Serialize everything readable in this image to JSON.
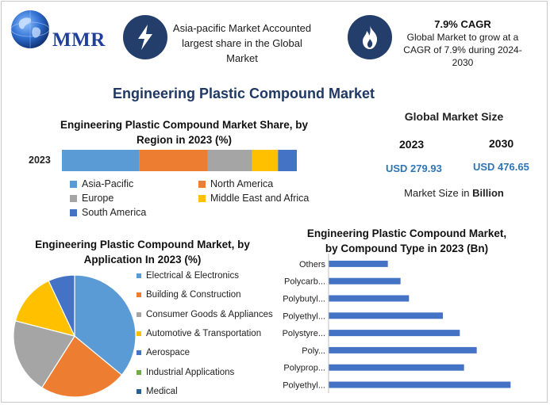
{
  "brand": {
    "logo_text": "MMR"
  },
  "highlights": [
    {
      "icon": "lightning-bolt-icon",
      "text": "Asia-pacific Market Accounted largest share in the Global Market"
    },
    {
      "icon": "flame-icon",
      "title": "7.9% CAGR",
      "text": "Global Market to grow at a CAGR of 7.9% during 2024-2030"
    }
  ],
  "main_title": "Engineering Plastic Compound Market",
  "global_size": {
    "title": "Global Market Size",
    "years": [
      "2023",
      "2030"
    ],
    "values": [
      "USD 279.93",
      "USD 476.65"
    ],
    "note_prefix": "Market Size in ",
    "note_bold": "Billion"
  },
  "colors": {
    "navy": "#233e6a",
    "asia_pacific": "#5b9bd5",
    "north_america": "#ed7d31",
    "europe": "#a5a5a5",
    "mea": "#ffc000",
    "south_america": "#4472c4",
    "industrial": "#70ad47",
    "medical": "#255e91",
    "bar": "#4472c4"
  },
  "chart_data": [
    {
      "type": "bar",
      "orientation": "horizontal-stacked",
      "title": "Engineering Plastic Compound Market Share, by Region in 2023 (%)",
      "categories": [
        "2023"
      ],
      "series": [
        {
          "name": "Asia-Pacific",
          "values": [
            33
          ],
          "color": "#5b9bd5"
        },
        {
          "name": "North America",
          "values": [
            29
          ],
          "color": "#ed7d31"
        },
        {
          "name": "Europe",
          "values": [
            19
          ],
          "color": "#a5a5a5"
        },
        {
          "name": "Middle East and Africa",
          "values": [
            11
          ],
          "color": "#ffc000"
        },
        {
          "name": "South America",
          "values": [
            8
          ],
          "color": "#4472c4"
        }
      ],
      "xlim": [
        0,
        100
      ],
      "grid": false,
      "legend": "bottom"
    },
    {
      "type": "pie",
      "title": "Engineering Plastic Compound Market, by Application In 2023 (%)",
      "labels": [
        "Electrical & Electronics",
        "Building & Construction",
        "Consumer Goods & Appliances",
        "Automotive & Transportation",
        "Aerospace",
        "Industrial Applications",
        "Medical"
      ],
      "values": [
        36,
        23,
        20,
        14,
        7,
        0,
        0
      ],
      "colors": [
        "#5b9bd5",
        "#ed7d31",
        "#a5a5a5",
        "#ffc000",
        "#4472c4",
        "#70ad47",
        "#255e91"
      ],
      "legend": "right"
    },
    {
      "type": "bar",
      "orientation": "horizontal",
      "title": "Engineering Plastic Compound Market, by Compound Type in 2023 (Bn)",
      "categories": [
        "Others",
        "Polycarb...",
        "Polybutyl...",
        "Polyethyl...",
        "Polystyre...",
        "Poly...",
        "Polyprop...",
        "Polyethyl..."
      ],
      "values": [
        14,
        17,
        19,
        27,
        31,
        35,
        32,
        43
      ],
      "xlim": [
        0,
        45
      ],
      "grid": false,
      "color": "#4472c4"
    }
  ]
}
